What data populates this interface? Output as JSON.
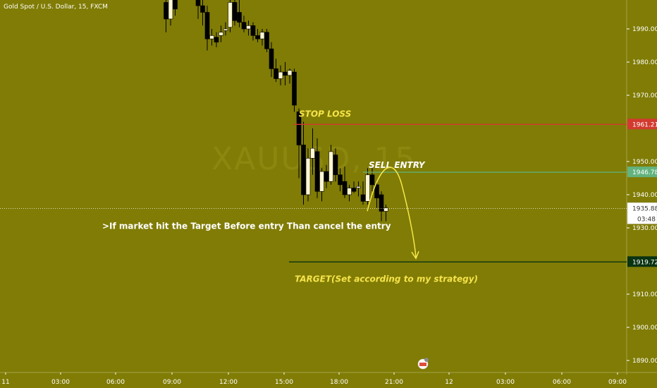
{
  "header": {
    "symbol": "Gold Spot / U.S. Dollar, 15, FXCM"
  },
  "watermark": "XAUUSD, 15",
  "colors": {
    "background": "#807c05",
    "candle_up": "#fdf6d2",
    "candle_down": "#000000",
    "stop_line": "#d33a2f",
    "entry_line": "#62b37e",
    "target_line": "#0a3312",
    "arrow": "#f5e84a",
    "stop_text": "#f6e34b",
    "white_text": "#ffffff"
  },
  "price_axis": {
    "ticks": [
      "1990.00",
      "1980.00",
      "1970.00",
      "1950.00",
      "1940.00",
      "1930.00",
      "1910.00",
      "1900.00",
      "1890.00"
    ],
    "tick_values": [
      1990,
      1980,
      1970,
      1950,
      1940,
      1930,
      1910,
      1900,
      1890
    ]
  },
  "time_axis": {
    "labels": [
      "11",
      "03:00",
      "06:00",
      "09:00",
      "12:00",
      "15:00",
      "18:00",
      "21:00",
      "12",
      "03:00",
      "06:00",
      "09:00"
    ]
  },
  "levels": {
    "stop_loss": {
      "label": "STOP LOSS",
      "price": 1961.21,
      "badge": "1961.21"
    },
    "sell_entry": {
      "label": "SELL ENTRY",
      "price": 1946.78,
      "badge": "1946.78"
    },
    "current": {
      "price": 1935.88,
      "badge": "1935.88",
      "countdown": "03:48"
    },
    "target": {
      "label": "TARGET(Set according to my strategy)",
      "price": 1919.72,
      "badge": "1919.72"
    }
  },
  "note": ">If market hit the Target Before entry Than cancel the entry",
  "chart_data": {
    "type": "candlestick",
    "symbol": "Gold Spot / U.S. Dollar",
    "interval": "15",
    "ylim": [
      1888,
      2001
    ],
    "x_labels": [
      "11",
      "03:00",
      "06:00",
      "09:00",
      "12:00",
      "15:00",
      "18:00",
      "21:00",
      "12",
      "03:00",
      "06:00",
      "09:00"
    ],
    "candles": [
      {
        "time": "08:45",
        "o": 1998.0,
        "h": 2000.5,
        "l": 1989.0,
        "c": 1993.0
      },
      {
        "time": "09:00",
        "o": 1993.0,
        "h": 2001.0,
        "l": 1991.0,
        "c": 1999.0
      },
      {
        "time": "09:15",
        "o": 1999.5,
        "h": 2001.0,
        "l": 1994.0,
        "c": 1996.0
      },
      {
        "time": "10:30",
        "o": 1999.0,
        "h": 2001.0,
        "l": 1993.0,
        "c": 1997.0
      },
      {
        "time": "10:45",
        "o": 1997.0,
        "h": 1999.0,
        "l": 1991.0,
        "c": 1995.0
      },
      {
        "time": "11:00",
        "o": 1995.0,
        "h": 1997.0,
        "l": 1983.5,
        "c": 1987.0
      },
      {
        "time": "11:15",
        "o": 1987.0,
        "h": 1990.0,
        "l": 1985.0,
        "c": 1988.0
      },
      {
        "time": "11:30",
        "o": 1987.5,
        "h": 1989.0,
        "l": 1984.5,
        "c": 1986.0
      },
      {
        "time": "11:45",
        "o": 1988.0,
        "h": 1991.0,
        "l": 1986.0,
        "c": 1989.0
      },
      {
        "time": "12:00",
        "o": 1989.5,
        "h": 1992.0,
        "l": 1988.0,
        "c": 1990.0
      },
      {
        "time": "12:15",
        "o": 1990.5,
        "h": 2000.0,
        "l": 1989.0,
        "c": 1998.0
      },
      {
        "time": "12:30",
        "o": 1998.0,
        "h": 2000.0,
        "l": 1991.0,
        "c": 1992.5
      },
      {
        "time": "12:45",
        "o": 1995.0,
        "h": 2000.0,
        "l": 1990.5,
        "c": 1992.0
      },
      {
        "time": "13:00",
        "o": 1992.0,
        "h": 1994.0,
        "l": 1989.0,
        "c": 1990.0
      },
      {
        "time": "13:15",
        "o": 1990.0,
        "h": 1992.5,
        "l": 1988.0,
        "c": 1991.0
      },
      {
        "time": "13:30",
        "o": 1991.0,
        "h": 1992.0,
        "l": 1986.5,
        "c": 1988.0
      },
      {
        "time": "13:45",
        "o": 1988.0,
        "h": 1990.0,
        "l": 1986.0,
        "c": 1987.0
      },
      {
        "time": "14:00",
        "o": 1987.0,
        "h": 1990.0,
        "l": 1985.0,
        "c": 1989.0
      },
      {
        "time": "14:15",
        "o": 1989.0,
        "h": 1990.0,
        "l": 1983.0,
        "c": 1984.0
      },
      {
        "time": "14:30",
        "o": 1984.0,
        "h": 1986.0,
        "l": 1975.5,
        "c": 1978.0
      },
      {
        "time": "14:45",
        "o": 1978.0,
        "h": 1981.0,
        "l": 1974.0,
        "c": 1975.0
      },
      {
        "time": "15:00",
        "o": 1975.0,
        "h": 1979.0,
        "l": 1973.0,
        "c": 1977.0
      },
      {
        "time": "15:15",
        "o": 1977.0,
        "h": 1980.0,
        "l": 1973.0,
        "c": 1976.0
      },
      {
        "time": "15:30",
        "o": 1976.0,
        "h": 1978.0,
        "l": 1973.5,
        "c": 1977.5
      },
      {
        "time": "15:45",
        "o": 1977.0,
        "h": 1978.0,
        "l": 1965.0,
        "c": 1967.0
      },
      {
        "time": "16:00",
        "o": 1965.0,
        "h": 1966.0,
        "l": 1945.0,
        "c": 1955.0
      },
      {
        "time": "16:15",
        "o": 1955.0,
        "h": 1962.0,
        "l": 1937.0,
        "c": 1940.0
      },
      {
        "time": "16:30",
        "o": 1940.0,
        "h": 1954.0,
        "l": 1938.0,
        "c": 1951.0
      },
      {
        "time": "16:45",
        "o": 1951.0,
        "h": 1960.0,
        "l": 1946.0,
        "c": 1954.0
      },
      {
        "time": "17:00",
        "o": 1953.0,
        "h": 1957.0,
        "l": 1939.0,
        "c": 1941.0
      },
      {
        "time": "17:15",
        "o": 1941.0,
        "h": 1948.0,
        "l": 1938.0,
        "c": 1947.0
      },
      {
        "time": "17:30",
        "o": 1947.0,
        "h": 1949.0,
        "l": 1942.0,
        "c": 1944.0
      },
      {
        "time": "17:45",
        "o": 1944.0,
        "h": 1955.0,
        "l": 1943.0,
        "c": 1953.0
      },
      {
        "time": "18:00",
        "o": 1952.0,
        "h": 1954.0,
        "l": 1944.0,
        "c": 1946.0
      },
      {
        "time": "18:15",
        "o": 1946.0,
        "h": 1948.0,
        "l": 1941.0,
        "c": 1943.0
      },
      {
        "time": "18:30",
        "o": 1944.0,
        "h": 1948.5,
        "l": 1939.0,
        "c": 1940.0
      },
      {
        "time": "18:45",
        "o": 1940.0,
        "h": 1943.0,
        "l": 1938.0,
        "c": 1942.0
      },
      {
        "time": "19:00",
        "o": 1942.0,
        "h": 1944.0,
        "l": 1940.5,
        "c": 1941.0
      },
      {
        "time": "19:15",
        "o": 1942.0,
        "h": 1944.0,
        "l": 1939.5,
        "c": 1942.5
      },
      {
        "time": "19:30",
        "o": 1940.0,
        "h": 1944.0,
        "l": 1937.0,
        "c": 1938.0
      },
      {
        "time": "19:45",
        "o": 1938.0,
        "h": 1948.0,
        "l": 1937.0,
        "c": 1946.0
      },
      {
        "time": "20:00",
        "o": 1946.0,
        "h": 1948.0,
        "l": 1941.0,
        "c": 1943.0
      },
      {
        "time": "20:15",
        "o": 1943.0,
        "h": 1944.0,
        "l": 1936.0,
        "c": 1939.0
      },
      {
        "time": "20:30",
        "o": 1940.0,
        "h": 1941.0,
        "l": 1932.0,
        "c": 1935.0
      },
      {
        "time": "20:45",
        "o": 1935.0,
        "h": 1937.0,
        "l": 1932.0,
        "c": 1936.0
      }
    ]
  }
}
